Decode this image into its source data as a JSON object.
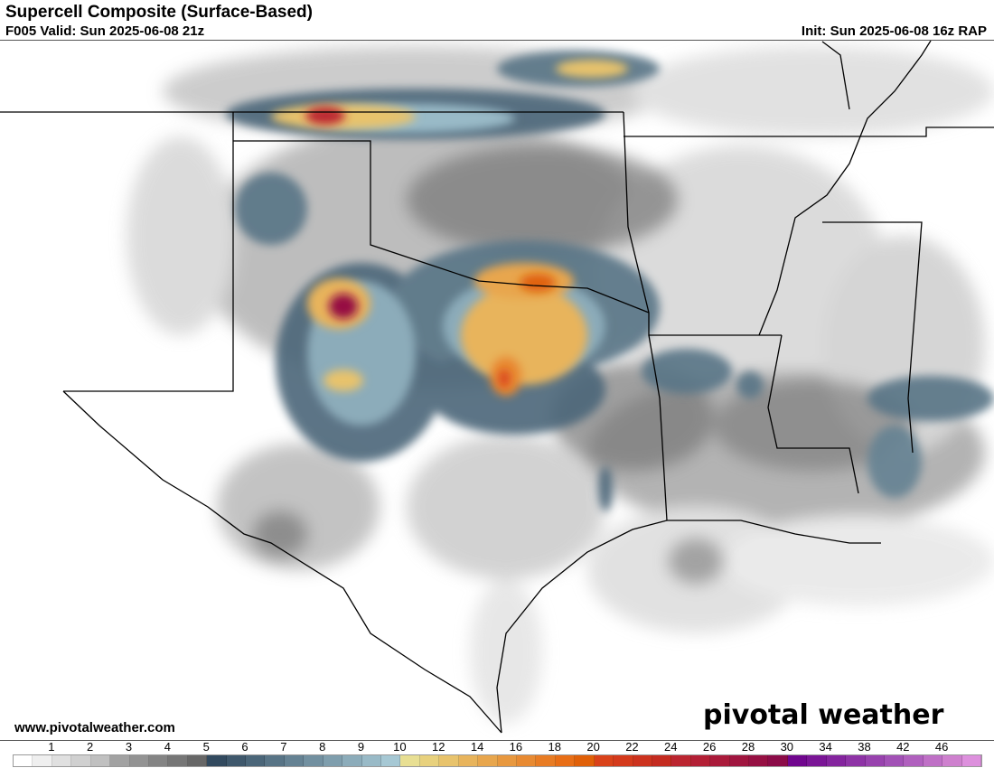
{
  "header": {
    "title": "Supercell Composite (Surface-Based)",
    "valid": "F005 Valid: Sun 2025-06-08 21z",
    "init": "Init: Sun 2025-06-08 16z RAP"
  },
  "footer": {
    "url": "www.pivotalweather.com",
    "logo": "pivotal weather"
  },
  "colorbar": {
    "labels": [
      "1",
      "2",
      "3",
      "4",
      "5",
      "6",
      "7",
      "8",
      "9",
      "10",
      "12",
      "14",
      "16",
      "18",
      "20",
      "22",
      "24",
      "26",
      "28",
      "30",
      "34",
      "38",
      "42",
      "46"
    ],
    "label_values": [
      1,
      2,
      3,
      4,
      5,
      6,
      7,
      8,
      9,
      10,
      12,
      14,
      16,
      18,
      20,
      22,
      24,
      26,
      28,
      30,
      34,
      38,
      42,
      46
    ],
    "min": 0,
    "max": 50,
    "colors": [
      "#ffffff",
      "#efefef",
      "#e0e0e0",
      "#d0d0d0",
      "#c0c0c0",
      "#a2a2a2",
      "#939393",
      "#848484",
      "#767676",
      "#676767",
      "#324a5f",
      "#3f586c",
      "#4b6679",
      "#587486",
      "#658293",
      "#7290a0",
      "#7f9ead",
      "#8cacba",
      "#99bac7",
      "#a6c8d4",
      "#e8df93",
      "#e8d17d",
      "#e8c36c",
      "#e8b45c",
      "#e8a64d",
      "#e8983f",
      "#e88a32",
      "#e87c24",
      "#e86e16",
      "#e06008",
      "#d9421a",
      "#d43a1c",
      "#cc321e",
      "#c42b20",
      "#bb2530",
      "#b31f35",
      "#aa1a3a",
      "#a0153f",
      "#961043",
      "#8c0b48",
      "#70068e",
      "#7a1596",
      "#84249e",
      "#8e33a6",
      "#9842ae",
      "#a251b6",
      "#b060be",
      "#bf70c6",
      "#ce80ce",
      "#dd90dd"
    ]
  },
  "field_colors": {
    "low": "#b5b5b5",
    "mid": "#707070",
    "blue": "#4b6679",
    "lightblue": "#99bac7",
    "yellow": "#e8c36c",
    "orange": "#e8983f",
    "red": "#d9421a",
    "maroon": "#961043"
  }
}
